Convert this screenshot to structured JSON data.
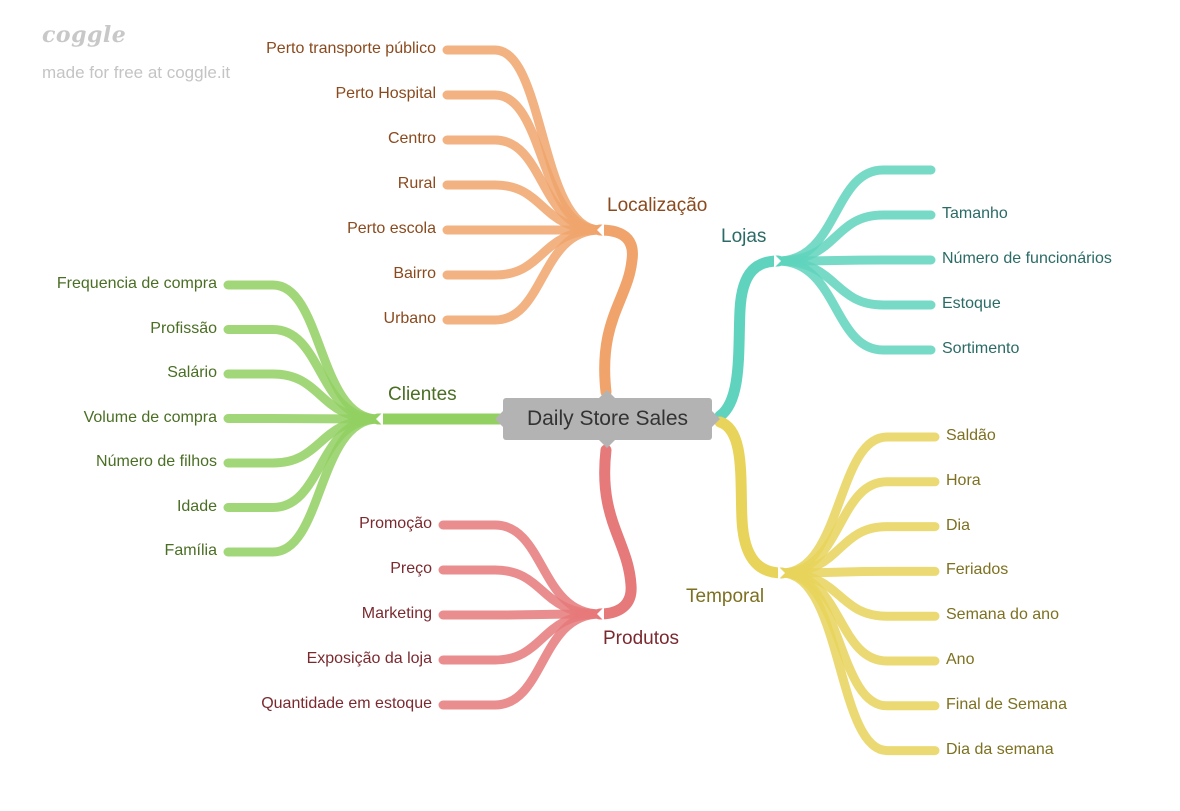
{
  "watermark": {
    "logo": "coggle",
    "tagline": "made for free at coggle.it"
  },
  "center": {
    "label": "Daily Store Sales",
    "color": "#b3b3b3"
  },
  "branches": {
    "localizacao": {
      "label": "Localização",
      "color": "#f0a46c",
      "text_color": "#8a4a1e",
      "items": [
        "Perto transporte público",
        "Perto Hospital",
        "Centro",
        "Rural",
        "Perto escola",
        "Bairro",
        "Urbano"
      ]
    },
    "clientes": {
      "label": "Clientes",
      "color": "#92d061",
      "text_color": "#4a6e24",
      "items": [
        "Frequencia de compra",
        "Profissão",
        "Salário",
        "Volume de compra",
        "Número de filhos",
        "Idade",
        "Família"
      ]
    },
    "produtos": {
      "label": "Produtos",
      "color": "#e6797a",
      "text_color": "#7a2a2f",
      "items": [
        "Promoção",
        "Preço",
        "Marketing",
        "Exposição da loja",
        "Quantidade em estoque"
      ]
    },
    "lojas": {
      "label": "Lojas",
      "color": "#5fd3bd",
      "text_color": "#2b6b66",
      "items": [
        "",
        "Tamanho",
        "Número de funcionários",
        "Estoque",
        "Sortimento"
      ]
    },
    "temporal": {
      "label": "Temporal",
      "color": "#e8d45a",
      "text_color": "#7d7020",
      "items": [
        "Saldão",
        "Hora",
        "Dia",
        "Feriados",
        "Semana do ano",
        "Ano",
        "Final de Semana",
        "Dia da semana"
      ]
    }
  }
}
